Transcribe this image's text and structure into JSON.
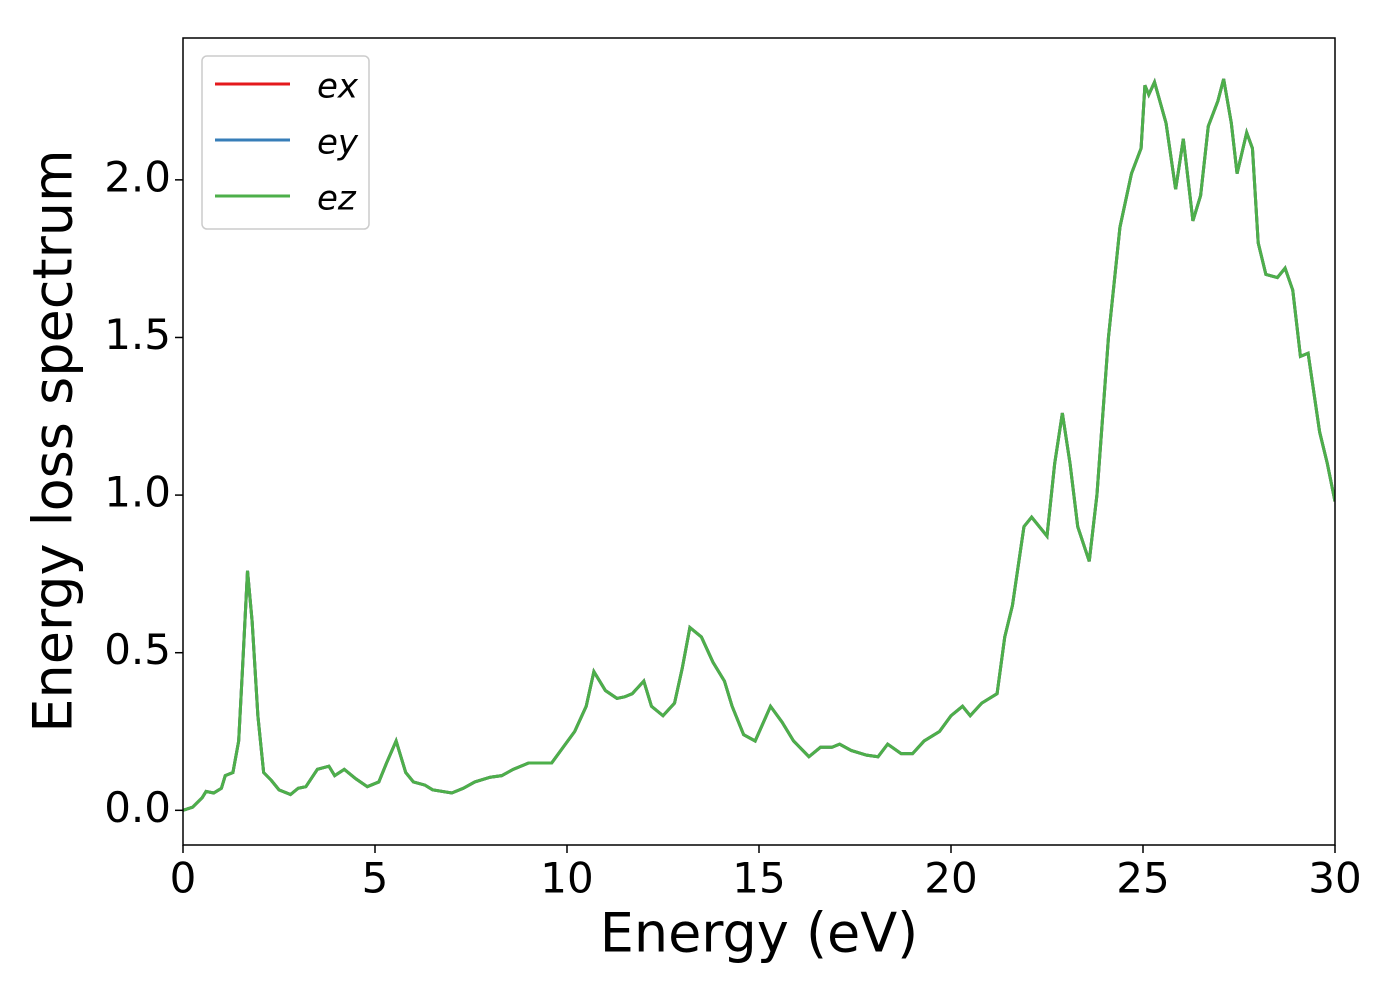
{
  "chart_data": {
    "type": "line",
    "xlabel": "Energy (eV)",
    "ylabel": "Energy loss spectrum",
    "xlim": [
      0,
      30
    ],
    "ylim": [
      -0.11,
      2.45
    ],
    "xticks": [
      0,
      5,
      10,
      15,
      20,
      25,
      30
    ],
    "yticks": [
      {
        "value": 0,
        "label": "0.0"
      },
      0.5,
      {
        "value": 1,
        "label": "1.0"
      },
      1.5,
      {
        "value": 2,
        "label": "2.0"
      }
    ],
    "legend": "upper left",
    "grid": false,
    "x": [
      0,
      0.25,
      0.5,
      0.6,
      0.8,
      1.0,
      1.1,
      1.3,
      1.45,
      1.55,
      1.68,
      1.8,
      1.95,
      2.1,
      2.3,
      2.5,
      2.8,
      3.0,
      3.2,
      3.5,
      3.8,
      3.95,
      4.2,
      4.5,
      4.8,
      5.1,
      5.3,
      5.55,
      5.8,
      6.0,
      6.3,
      6.5,
      7.0,
      7.3,
      7.6,
      8.0,
      8.3,
      8.6,
      9.0,
      9.3,
      9.6,
      9.9,
      10.2,
      10.5,
      10.7,
      11.0,
      11.3,
      11.5,
      11.7,
      12.0,
      12.2,
      12.5,
      12.8,
      13.0,
      13.2,
      13.5,
      13.8,
      14.1,
      14.3,
      14.6,
      14.9,
      15.3,
      15.6,
      15.9,
      16.3,
      16.6,
      16.9,
      17.1,
      17.4,
      17.8,
      18.1,
      18.35,
      18.7,
      19.0,
      19.3,
      19.7,
      20.0,
      20.3,
      20.5,
      20.8,
      21.2,
      21.4,
      21.6,
      21.9,
      22.1,
      22.5,
      22.7,
      22.9,
      23.1,
      23.3,
      23.6,
      23.8,
      24.1,
      24.4,
      24.7,
      24.95,
      25.05,
      25.15,
      25.3,
      25.6,
      25.85,
      26.05,
      26.3,
      26.5,
      26.7,
      26.95,
      27.1,
      27.3,
      27.45,
      27.7,
      27.85,
      28.0,
      28.2,
      28.5,
      28.7,
      28.9,
      29.1,
      29.3,
      29.6,
      29.8,
      30.0
    ],
    "series": [
      {
        "name": "ex",
        "color": "#e41a1c",
        "values": [
          0,
          0.01,
          0.04,
          0.06,
          0.055,
          0.07,
          0.11,
          0.12,
          0.22,
          0.45,
          0.76,
          0.6,
          0.3,
          0.12,
          0.095,
          0.065,
          0.05,
          0.07,
          0.075,
          0.13,
          0.14,
          0.11,
          0.13,
          0.1,
          0.075,
          0.09,
          0.15,
          0.22,
          0.12,
          0.09,
          0.08,
          0.065,
          0.055,
          0.07,
          0.09,
          0.105,
          0.11,
          0.13,
          0.15,
          0.15,
          0.15,
          0.2,
          0.25,
          0.33,
          0.44,
          0.38,
          0.355,
          0.36,
          0.37,
          0.41,
          0.33,
          0.3,
          0.34,
          0.45,
          0.58,
          0.55,
          0.47,
          0.41,
          0.33,
          0.24,
          0.22,
          0.33,
          0.28,
          0.22,
          0.17,
          0.2,
          0.2,
          0.21,
          0.19,
          0.175,
          0.17,
          0.21,
          0.18,
          0.18,
          0.22,
          0.25,
          0.3,
          0.33,
          0.3,
          0.34,
          0.37,
          0.55,
          0.65,
          0.9,
          0.93,
          0.87,
          1.1,
          1.26,
          1.1,
          0.9,
          0.79,
          1.0,
          1.5,
          1.85,
          2.02,
          2.1,
          2.3,
          2.27,
          2.31,
          2.18,
          1.97,
          2.13,
          1.87,
          1.95,
          2.17,
          2.25,
          2.32,
          2.18,
          2.02,
          2.15,
          2.1,
          1.8,
          1.7,
          1.69,
          1.72,
          1.65,
          1.44,
          1.45,
          1.2,
          1.1,
          0.98
        ]
      },
      {
        "name": "ey",
        "color": "#377eb8",
        "values": [
          0,
          0.01,
          0.04,
          0.06,
          0.055,
          0.07,
          0.11,
          0.12,
          0.22,
          0.45,
          0.76,
          0.6,
          0.3,
          0.12,
          0.095,
          0.065,
          0.05,
          0.07,
          0.075,
          0.13,
          0.14,
          0.11,
          0.13,
          0.1,
          0.075,
          0.09,
          0.15,
          0.22,
          0.12,
          0.09,
          0.08,
          0.065,
          0.055,
          0.07,
          0.09,
          0.105,
          0.11,
          0.13,
          0.15,
          0.15,
          0.15,
          0.2,
          0.25,
          0.33,
          0.44,
          0.38,
          0.355,
          0.36,
          0.37,
          0.41,
          0.33,
          0.3,
          0.34,
          0.45,
          0.58,
          0.55,
          0.47,
          0.41,
          0.33,
          0.24,
          0.22,
          0.33,
          0.28,
          0.22,
          0.17,
          0.2,
          0.2,
          0.21,
          0.19,
          0.175,
          0.17,
          0.21,
          0.18,
          0.18,
          0.22,
          0.25,
          0.3,
          0.33,
          0.3,
          0.34,
          0.37,
          0.55,
          0.65,
          0.9,
          0.93,
          0.87,
          1.1,
          1.26,
          1.1,
          0.9,
          0.79,
          1.0,
          1.5,
          1.85,
          2.02,
          2.1,
          2.3,
          2.27,
          2.31,
          2.18,
          1.97,
          2.13,
          1.87,
          1.95,
          2.17,
          2.25,
          2.32,
          2.18,
          2.02,
          2.15,
          2.1,
          1.8,
          1.7,
          1.69,
          1.72,
          1.65,
          1.44,
          1.45,
          1.2,
          1.1,
          0.98
        ]
      },
      {
        "name": "ez",
        "color": "#4daf4a",
        "values": [
          0,
          0.01,
          0.04,
          0.06,
          0.055,
          0.07,
          0.11,
          0.12,
          0.22,
          0.45,
          0.76,
          0.6,
          0.3,
          0.12,
          0.095,
          0.065,
          0.05,
          0.07,
          0.075,
          0.13,
          0.14,
          0.11,
          0.13,
          0.1,
          0.075,
          0.09,
          0.15,
          0.22,
          0.12,
          0.09,
          0.08,
          0.065,
          0.055,
          0.07,
          0.09,
          0.105,
          0.11,
          0.13,
          0.15,
          0.15,
          0.15,
          0.2,
          0.25,
          0.33,
          0.44,
          0.38,
          0.355,
          0.36,
          0.37,
          0.41,
          0.33,
          0.3,
          0.34,
          0.45,
          0.58,
          0.55,
          0.47,
          0.41,
          0.33,
          0.24,
          0.22,
          0.33,
          0.28,
          0.22,
          0.17,
          0.2,
          0.2,
          0.21,
          0.19,
          0.175,
          0.17,
          0.21,
          0.18,
          0.18,
          0.22,
          0.25,
          0.3,
          0.33,
          0.3,
          0.34,
          0.37,
          0.55,
          0.65,
          0.9,
          0.93,
          0.87,
          1.1,
          1.26,
          1.1,
          0.9,
          0.79,
          1.0,
          1.5,
          1.85,
          2.02,
          2.1,
          2.3,
          2.27,
          2.31,
          2.18,
          1.97,
          2.13,
          1.87,
          1.95,
          2.17,
          2.25,
          2.32,
          2.18,
          2.02,
          2.15,
          2.1,
          1.8,
          1.7,
          1.69,
          1.72,
          1.65,
          1.44,
          1.45,
          1.2,
          1.1,
          0.98
        ]
      }
    ]
  }
}
